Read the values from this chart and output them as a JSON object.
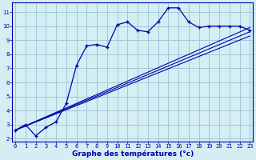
{
  "xlabel": "Graphe des températures (°c)",
  "bg_color": "#d4eef4",
  "grid_color": "#a0c8d8",
  "line_color": "#0000aa",
  "x_ticks": [
    0,
    1,
    2,
    3,
    4,
    5,
    6,
    7,
    8,
    9,
    10,
    11,
    12,
    13,
    14,
    15,
    16,
    17,
    18,
    19,
    20,
    21,
    22,
    23
  ],
  "y_ticks": [
    2,
    3,
    4,
    5,
    6,
    7,
    8,
    9,
    10,
    11
  ],
  "xlim": [
    -0.3,
    23.3
  ],
  "ylim": [
    1.8,
    11.7
  ],
  "main_x": [
    0,
    1,
    2,
    3,
    4,
    5,
    6,
    7,
    8,
    9,
    10,
    11,
    12,
    13,
    14,
    15,
    16,
    17,
    18,
    19,
    20,
    21,
    22,
    23
  ],
  "main_y": [
    2.6,
    3.0,
    2.2,
    2.8,
    3.2,
    4.5,
    7.2,
    8.6,
    8.7,
    8.5,
    10.1,
    10.3,
    9.7,
    9.6,
    10.3,
    11.3,
    11.3,
    10.3,
    9.9,
    10.0,
    10.0,
    10.0,
    10.0,
    9.7
  ],
  "line2_x": [
    0,
    23
  ],
  "line2_y": [
    2.6,
    9.9
  ],
  "line3_x": [
    0,
    23
  ],
  "line3_y": [
    2.6,
    9.6
  ],
  "line4_x": [
    0,
    23
  ],
  "line4_y": [
    2.6,
    9.3
  ],
  "tick_fontsize": 5.0,
  "xlabel_fontsize": 6.5,
  "xlabel_bold": true
}
